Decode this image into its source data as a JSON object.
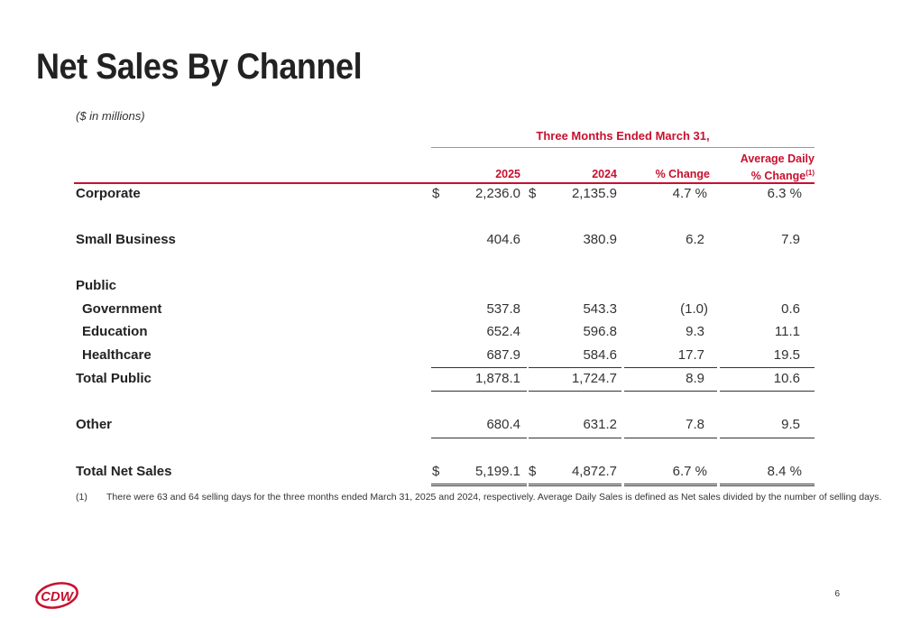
{
  "title": "Net Sales By Channel",
  "units_note": "($ in millions)",
  "period_header": "Three Months Ended March 31,",
  "columns": {
    "y2025": "2025",
    "y2024": "2024",
    "pct_change": "% Change",
    "avg_daily_line1": "Average Daily",
    "avg_daily_line2": "% Change",
    "avg_daily_footnote_ref": "(1)"
  },
  "rows": {
    "corporate": {
      "label": "Corporate",
      "dollar": "$",
      "v2025": "2,236.0",
      "dollar2": "$",
      "v2024": "2,135.9",
      "pct": "4.7 %",
      "avg": "6.3 %"
    },
    "small_business": {
      "label": "Small Business",
      "v2025": "404.6",
      "v2024": "380.9",
      "pct": "6.2",
      "avg": "7.9"
    },
    "public_header": {
      "label": "Public"
    },
    "government": {
      "label": "Government",
      "v2025": "537.8",
      "v2024": "543.3",
      "pct": "(1.0)",
      "avg": "0.6"
    },
    "education": {
      "label": "Education",
      "v2025": "652.4",
      "v2024": "596.8",
      "pct": "9.3",
      "avg": "11.1"
    },
    "healthcare": {
      "label": "Healthcare",
      "v2025": "687.9",
      "v2024": "584.6",
      "pct": "17.7",
      "avg": "19.5"
    },
    "total_public": {
      "label": "Total Public",
      "v2025": "1,878.1",
      "v2024": "1,724.7",
      "pct": "8.9",
      "avg": "10.6"
    },
    "other": {
      "label": "Other",
      "v2025": "680.4",
      "v2024": "631.2",
      "pct": "7.8",
      "avg": "9.5"
    },
    "total_net_sales": {
      "label": "Total Net Sales",
      "dollar": "$",
      "v2025": "5,199.1",
      "dollar2": "$",
      "v2024": "4,872.7",
      "pct": "6.7 %",
      "avg": "8.4 %"
    }
  },
  "footnote": {
    "number": "(1)",
    "text": "There were 63 and 64 selling days for the three months ended March 31, 2025 and 2024, respectively.  Average Daily Sales is defined as Net sales divided by the number of selling days."
  },
  "logo_text": "CDW",
  "brand_color": "#c8102e",
  "page_number": "6"
}
